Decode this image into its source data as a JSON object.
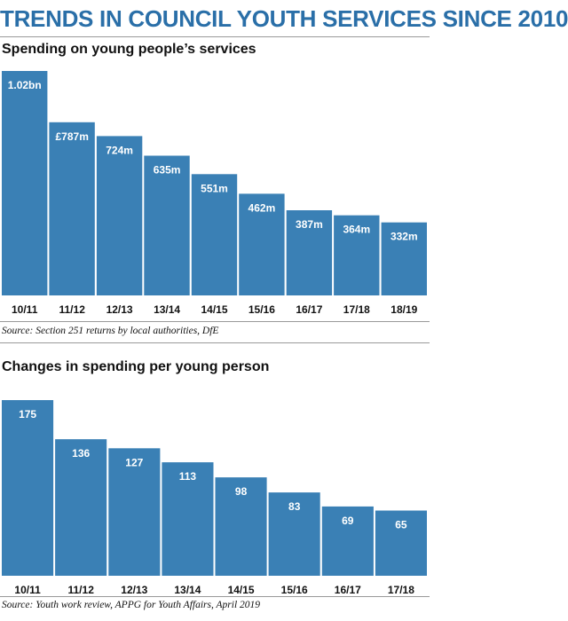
{
  "title": "TRENDS IN COUNCIL YOUTH SERVICES SINCE 2010",
  "colors": {
    "bar": "#3a80b5",
    "title": "#2a6fa8",
    "text": "#111111"
  },
  "chart_data": [
    {
      "type": "bar",
      "title": "Spending on young people’s services",
      "categories": [
        "10/11",
        "11/12",
        "12/13",
        "13/14",
        "14/15",
        "15/16",
        "16/17",
        "17/18",
        "18/19"
      ],
      "values": [
        1020,
        787,
        724,
        635,
        551,
        462,
        387,
        364,
        332
      ],
      "data_labels": [
        "1.02bn",
        "£787m",
        "724m",
        "635m",
        "551m",
        "462m",
        "387m",
        "364m",
        "332m"
      ],
      "ylim": [
        0,
        1020
      ],
      "grid": false,
      "source": "Source: Section 251 returns by local authorities, DfE"
    },
    {
      "type": "bar",
      "title": "Changes in spending per young person",
      "categories": [
        "10/11",
        "11/12",
        "12/13",
        "13/14",
        "14/15",
        "15/16",
        "16/17",
        "17/18"
      ],
      "values": [
        175,
        136,
        127,
        113,
        98,
        83,
        69,
        65
      ],
      "data_labels": [
        "175",
        "136",
        "127",
        "113",
        "98",
        "83",
        "69",
        "65"
      ],
      "ylim": [
        0,
        175
      ],
      "grid": false,
      "source": "Source: Youth work review, APPG for Youth Affairs, April 2019"
    }
  ]
}
